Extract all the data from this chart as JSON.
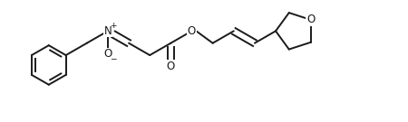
{
  "background": "#ffffff",
  "line_color": "#1a1a1a",
  "line_width": 1.4,
  "font_size": 8.5,
  "figsize": [
    4.5,
    1.35
  ],
  "dpi": 100,
  "xlim": [
    0,
    4.5
  ],
  "ylim": [
    0,
    1.35
  ],
  "N_charge_symbol": "+",
  "O_minus_symbol": "−",
  "atom_O": "O",
  "atom_N": "N",
  "O_ring_color": "#1a1a1a"
}
